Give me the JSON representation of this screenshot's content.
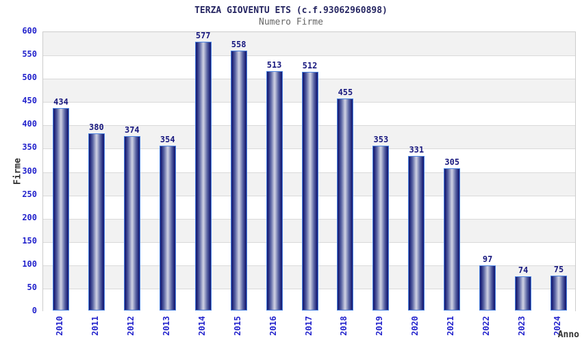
{
  "chart_data": {
    "type": "bar",
    "title": "TERZA GIOVENTU ETS (c.f.93062960898)",
    "subtitle": "Numero Firme",
    "xlabel": "Anno",
    "ylabel": "Firme",
    "categories": [
      "2010",
      "2011",
      "2012",
      "2013",
      "2014",
      "2015",
      "2016",
      "2017",
      "2018",
      "2019",
      "2020",
      "2021",
      "2022",
      "2023",
      "2024"
    ],
    "values": [
      434,
      380,
      374,
      354,
      577,
      558,
      513,
      512,
      455,
      353,
      331,
      305,
      97,
      74,
      75
    ],
    "ylim": [
      0,
      600
    ],
    "ytick_step": 50,
    "grid": true,
    "legend_position": "none",
    "band_fill_order": "top_band_gray_alternating",
    "colors": {
      "title": "#262662",
      "subtitle": "#666666",
      "axis_title": "#333333",
      "tick_label": "#2323cc",
      "value_label": "#19197f",
      "bar_edge": "#1b2178",
      "bar_mid": "#5f69a6",
      "bar_center": "#c9cce0",
      "bar_outline": "#4a82e0",
      "band": "#f2f2f2",
      "gridline": "#d9d9d9",
      "plot_border": "#cccccc",
      "background": "#ffffff"
    }
  }
}
